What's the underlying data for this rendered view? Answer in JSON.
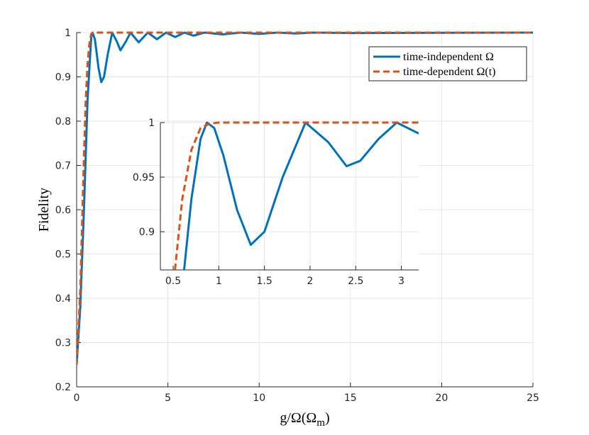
{
  "chart_data": [
    {
      "type": "line",
      "ylabel": "Fidelity",
      "xlabel_parts": [
        "g/Ω(Ω",
        "m",
        ")"
      ],
      "xlim": [
        0,
        25
      ],
      "ylim": [
        0.2,
        1
      ],
      "xticks": [
        0,
        5,
        10,
        15,
        20,
        25
      ],
      "yticks": [
        0.2,
        0.3,
        0.4,
        0.5,
        0.6,
        0.7,
        0.8,
        0.9,
        1
      ],
      "grid": true,
      "legend": "northeast",
      "series": [
        {
          "name": "time-independent Ω",
          "color": "#0072BD",
          "linestyle": "solid",
          "x": [
            0,
            0.2,
            0.4,
            0.6,
            0.8,
            0.87,
            1.0,
            1.2,
            1.35,
            1.5,
            1.7,
            1.95,
            2.2,
            2.4,
            2.7,
            2.95,
            3.4,
            3.9,
            4.4,
            4.9,
            5.4,
            5.9,
            6.4,
            7,
            8,
            9,
            10,
            11,
            12,
            13,
            15,
            25
          ],
          "values": [
            0.25,
            0.38,
            0.6,
            0.85,
            0.99,
            1.0,
            0.985,
            0.92,
            0.888,
            0.9,
            0.95,
            1.0,
            0.98,
            0.96,
            0.98,
            1.0,
            0.978,
            1.0,
            0.985,
            1.0,
            0.99,
            1.0,
            0.993,
            1.0,
            0.996,
            1.0,
            0.997,
            1.0,
            0.998,
            1.0,
            0.999,
            1.0
          ]
        },
        {
          "name": "time-dependent Ω(t)",
          "color": "#D95319",
          "linestyle": "dashed",
          "x": [
            0,
            0.2,
            0.4,
            0.5,
            0.6,
            0.7,
            0.8,
            0.9,
            25
          ],
          "values": [
            0.25,
            0.42,
            0.72,
            0.85,
            0.93,
            0.975,
            0.997,
            1.0,
            1.0
          ]
        }
      ]
    },
    {
      "type": "line",
      "xlim": [
        0.36,
        3.19
      ],
      "ylim": [
        0.865,
        1
      ],
      "xticks": [
        0.5,
        1,
        1.5,
        2,
        2.5,
        3
      ],
      "yticks": [
        0.9,
        0.95,
        1
      ],
      "grid": true,
      "series": [
        {
          "color": "#0072BD",
          "linestyle": "solid",
          "x": [
            0.62,
            0.7,
            0.8,
            0.87,
            0.95,
            1.05,
            1.2,
            1.35,
            1.5,
            1.7,
            1.95,
            2.2,
            2.4,
            2.55,
            2.75,
            2.95,
            3.19
          ],
          "values": [
            0.865,
            0.93,
            0.985,
            1.0,
            0.995,
            0.97,
            0.92,
            0.888,
            0.9,
            0.95,
            1.0,
            0.982,
            0.96,
            0.965,
            0.985,
            1.0,
            0.99
          ]
        },
        {
          "color": "#D95319",
          "linestyle": "dashed",
          "x": [
            0.52,
            0.6,
            0.7,
            0.8,
            0.9,
            1.0,
            3.19
          ],
          "values": [
            0.865,
            0.93,
            0.975,
            0.995,
            0.999,
            1.0,
            1.0
          ]
        }
      ]
    }
  ]
}
